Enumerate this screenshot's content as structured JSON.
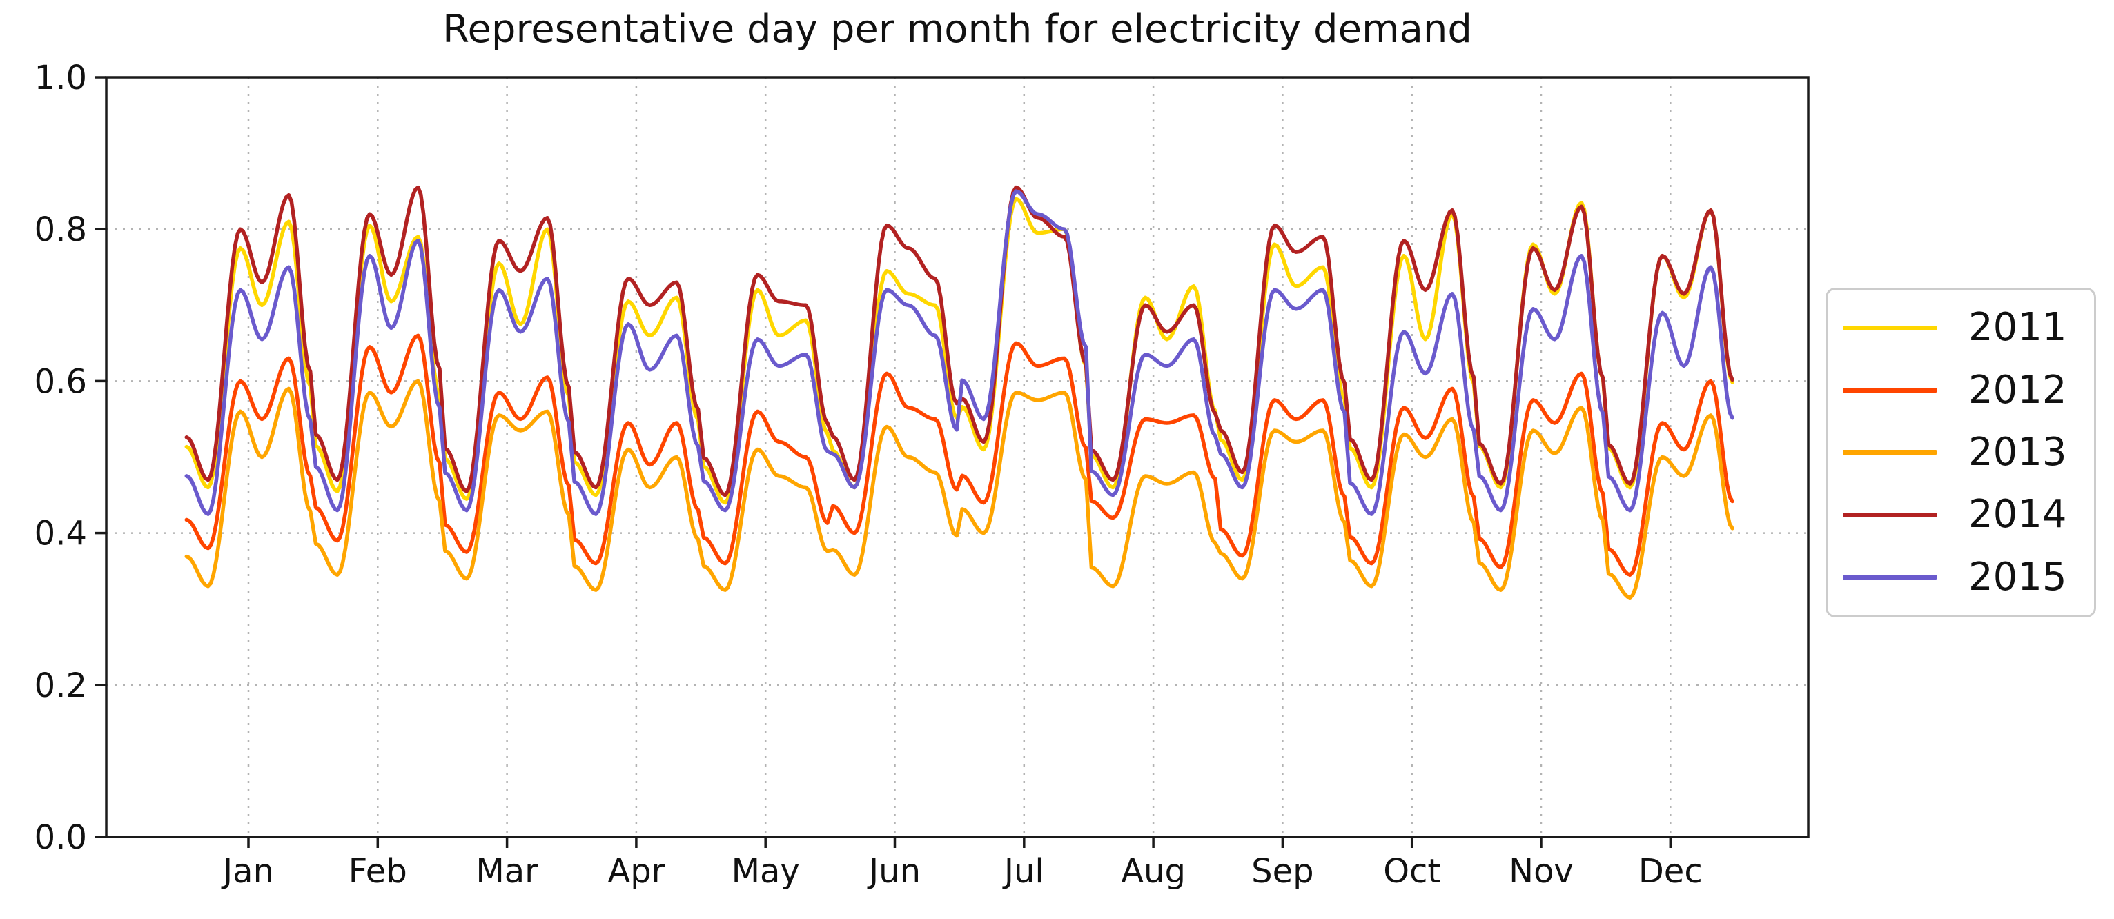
{
  "title": "Representative day per month for electricity demand",
  "axes": {
    "yticks": [
      "0.0",
      "0.2",
      "0.4",
      "0.6",
      "0.8",
      "1.0"
    ],
    "months": [
      "Jan",
      "Feb",
      "Mar",
      "Apr",
      "May",
      "Jun",
      "Jul",
      "Aug",
      "Sep",
      "Oct",
      "Nov",
      "Dec"
    ],
    "grid": "dotted",
    "grid_color": "#b3b3b3",
    "spine_color": "#1a1a1a"
  },
  "chart_data": {
    "type": "line",
    "title": "Representative day per month for electricity demand",
    "xlabel": "",
    "ylabel": "",
    "ylim": [
      0.0,
      1.0
    ],
    "x_structure": "12 months x 24-hour representative day (288 hourly points per series)",
    "categories": [
      "Jan",
      "Feb",
      "Mar",
      "Apr",
      "May",
      "Jun",
      "Jul",
      "Aug",
      "Sep",
      "Oct",
      "Nov",
      "Dec"
    ],
    "legend_position": "center right, outside axes",
    "profile_keypoint_hours": [
      0,
      4,
      10,
      14,
      19,
      23
    ],
    "profile_keypoint_roles": [
      "midnight-shoulder",
      "night-min",
      "morning-peak",
      "midday-dip",
      "evening-peak",
      "day-end"
    ],
    "shape_factors": {
      "start_vs_morning": 0.17,
      "end_vs_evening": 0.38
    },
    "series": [
      {
        "name": "2011",
        "color": "#FFD700",
        "monthly_profile_fields": [
          "night_min",
          "morning_peak",
          "midday_dip",
          "evening_peak"
        ],
        "monthly_profiles": [
          [
            0.46,
            0.775,
            0.7,
            0.81
          ],
          [
            0.455,
            0.805,
            0.705,
            0.79
          ],
          [
            0.445,
            0.755,
            0.675,
            0.8
          ],
          [
            0.45,
            0.705,
            0.66,
            0.71
          ],
          [
            0.44,
            0.72,
            0.66,
            0.68
          ],
          [
            0.46,
            0.745,
            0.715,
            0.7
          ],
          [
            0.51,
            0.84,
            0.795,
            0.8
          ],
          [
            0.46,
            0.71,
            0.655,
            0.725
          ],
          [
            0.47,
            0.78,
            0.725,
            0.75
          ],
          [
            0.46,
            0.765,
            0.655,
            0.82
          ],
          [
            0.46,
            0.78,
            0.715,
            0.835
          ],
          [
            0.46,
            0.765,
            0.71,
            0.825
          ]
        ]
      },
      {
        "name": "2012",
        "color": "#FF4500",
        "monthly_profile_fields": [
          "night_min",
          "morning_peak",
          "midday_dip",
          "evening_peak"
        ],
        "monthly_profiles": [
          [
            0.38,
            0.6,
            0.55,
            0.63
          ],
          [
            0.39,
            0.645,
            0.585,
            0.66
          ],
          [
            0.375,
            0.585,
            0.55,
            0.605
          ],
          [
            0.36,
            0.545,
            0.49,
            0.545
          ],
          [
            0.36,
            0.56,
            0.52,
            0.5
          ],
          [
            0.4,
            0.61,
            0.565,
            0.55
          ],
          [
            0.44,
            0.65,
            0.62,
            0.63
          ],
          [
            0.42,
            0.55,
            0.545,
            0.555
          ],
          [
            0.37,
            0.575,
            0.55,
            0.575
          ],
          [
            0.36,
            0.565,
            0.525,
            0.59
          ],
          [
            0.355,
            0.575,
            0.545,
            0.61
          ],
          [
            0.345,
            0.545,
            0.51,
            0.6
          ]
        ]
      },
      {
        "name": "2013",
        "color": "#FFA500",
        "monthly_profile_fields": [
          "night_min",
          "morning_peak",
          "midday_dip",
          "evening_peak"
        ],
        "monthly_profiles": [
          [
            0.33,
            0.56,
            0.5,
            0.59
          ],
          [
            0.345,
            0.585,
            0.54,
            0.6
          ],
          [
            0.34,
            0.555,
            0.535,
            0.56
          ],
          [
            0.325,
            0.51,
            0.46,
            0.5
          ],
          [
            0.325,
            0.51,
            0.475,
            0.46
          ],
          [
            0.345,
            0.54,
            0.5,
            0.48
          ],
          [
            0.4,
            0.585,
            0.575,
            0.585
          ],
          [
            0.33,
            0.475,
            0.465,
            0.48
          ],
          [
            0.34,
            0.535,
            0.52,
            0.535
          ],
          [
            0.33,
            0.53,
            0.5,
            0.55
          ],
          [
            0.325,
            0.535,
            0.505,
            0.565
          ],
          [
            0.315,
            0.5,
            0.475,
            0.555
          ]
        ]
      },
      {
        "name": "2014",
        "color": "#B22222",
        "monthly_profile_fields": [
          "night_min",
          "morning_peak",
          "midday_dip",
          "evening_peak"
        ],
        "monthly_profiles": [
          [
            0.47,
            0.8,
            0.73,
            0.845
          ],
          [
            0.47,
            0.82,
            0.74,
            0.855
          ],
          [
            0.455,
            0.785,
            0.745,
            0.815
          ],
          [
            0.46,
            0.735,
            0.7,
            0.73
          ],
          [
            0.45,
            0.74,
            0.705,
            0.7
          ],
          [
            0.47,
            0.805,
            0.775,
            0.735
          ],
          [
            0.52,
            0.855,
            0.815,
            0.79
          ],
          [
            0.47,
            0.7,
            0.665,
            0.7
          ],
          [
            0.48,
            0.805,
            0.77,
            0.79
          ],
          [
            0.47,
            0.785,
            0.72,
            0.825
          ],
          [
            0.465,
            0.775,
            0.72,
            0.83
          ],
          [
            0.465,
            0.765,
            0.715,
            0.825
          ]
        ]
      },
      {
        "name": "2015",
        "color": "#6A5ACD",
        "monthly_profile_fields": [
          "night_min",
          "morning_peak",
          "midday_dip",
          "evening_peak"
        ],
        "monthly_profiles": [
          [
            0.425,
            0.72,
            0.655,
            0.75
          ],
          [
            0.43,
            0.765,
            0.67,
            0.785
          ],
          [
            0.43,
            0.72,
            0.665,
            0.735
          ],
          [
            0.425,
            0.675,
            0.615,
            0.66
          ],
          [
            0.43,
            0.655,
            0.62,
            0.635
          ],
          [
            0.46,
            0.72,
            0.7,
            0.66
          ],
          [
            0.55,
            0.85,
            0.82,
            0.8
          ],
          [
            0.45,
            0.635,
            0.62,
            0.655
          ],
          [
            0.46,
            0.72,
            0.695,
            0.72
          ],
          [
            0.425,
            0.665,
            0.61,
            0.715
          ],
          [
            0.43,
            0.695,
            0.655,
            0.765
          ],
          [
            0.43,
            0.69,
            0.62,
            0.75
          ]
        ]
      }
    ]
  }
}
